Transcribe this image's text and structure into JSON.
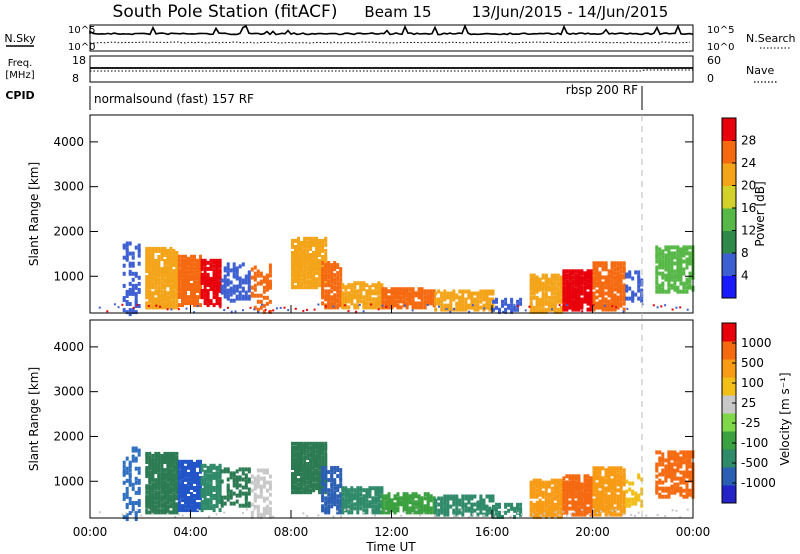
{
  "header": {
    "station": "South Pole Station (fitACF)",
    "beam": "Beam 15",
    "date_range": "13/Jun/2015 - 14/Jun/2015"
  },
  "top_panels": {
    "nsky_label": "N.Sky",
    "nsky_ticks": [
      "10^5",
      "10^0"
    ],
    "nsearch_label": "N.Search",
    "nsearch_ticks": [
      "10^5",
      "10^0"
    ],
    "freq_label": "Freq.",
    "freq_unit": "[MHz]",
    "freq_ticks": [
      "18",
      "8"
    ],
    "nave_label": "Nave",
    "nave_ticks": [
      "60",
      "0"
    ],
    "cpid_label": "CPID",
    "cpid_modes": [
      "normalsound (fast) 157 RF",
      "rbsp 200 RF"
    ]
  },
  "chart_data": [
    {
      "type": "heatmap",
      "name": "power",
      "ylabel": "Slant Range [km]",
      "y_ticks": [
        "1000",
        "2000",
        "3000",
        "4000"
      ],
      "ylim": [
        180,
        4600
      ],
      "x_ticks": [
        "00:00",
        "04:00",
        "08:00",
        "12:00",
        "16:00",
        "20:00",
        "00:00"
      ],
      "xlim_hours": [
        0,
        24
      ],
      "colorbar": {
        "label": "Power [dB]",
        "ticks": [
          "4",
          "8",
          "12",
          "16",
          "20",
          "24",
          "28"
        ],
        "colors": [
          "#1a1aff",
          "#3d5fd1",
          "#2f8a4a",
          "#57b848",
          "#d2d22a",
          "#f4a418",
          "#f56a10",
          "#e8000b"
        ]
      }
    },
    {
      "type": "heatmap",
      "name": "velocity",
      "ylabel": "Slant Range [km]",
      "y_ticks": [
        "1000",
        "2000",
        "3000",
        "4000"
      ],
      "ylim": [
        180,
        4600
      ],
      "x_ticks": [
        "00:00",
        "04:00",
        "08:00",
        "12:00",
        "16:00",
        "20:00",
        "00:00"
      ],
      "xlabel": "Time UT",
      "xlim_hours": [
        0,
        24
      ],
      "colorbar": {
        "label": "Velocity [m s⁻¹]",
        "ticks": [
          "1000",
          "500",
          "100",
          "25",
          "-25",
          "-100",
          "-500",
          "-1000"
        ],
        "colors": [
          "#2323c8",
          "#2b5fb4",
          "#2f8a6a",
          "#3aa040",
          "#7ed84a",
          "#c8c8c8",
          "#f2be18",
          "#f79a14",
          "#f56a10",
          "#e8000b"
        ]
      }
    }
  ],
  "echo_regions": [
    {
      "t0": 1.3,
      "t1": 2.0,
      "r0": 200,
      "r1": 1800,
      "v": "#2f6fc0",
      "p": "#3d5fd1",
      "d": 0.35
    },
    {
      "t0": 2.2,
      "t1": 3.5,
      "r0": 350,
      "r1": 1700,
      "v": "#2b7a52",
      "p": "#f4a418",
      "d": 0.8
    },
    {
      "t0": 3.5,
      "t1": 4.4,
      "r0": 400,
      "r1": 1500,
      "v": "#2255c8",
      "p": "#f56a10",
      "d": 0.75
    },
    {
      "t0": 4.4,
      "t1": 5.2,
      "r0": 400,
      "r1": 1400,
      "v": "#2f8a6a",
      "p": "#e8000b",
      "d": 0.7
    },
    {
      "t0": 5.2,
      "t1": 6.3,
      "r0": 500,
      "r1": 1350,
      "v": "#2b7a52",
      "p": "#3d5fd1",
      "d": 0.45
    },
    {
      "t0": 6.4,
      "t1": 7.2,
      "r0": 250,
      "r1": 1300,
      "v": "#c8c8c8",
      "p": "#f56a10",
      "d": 0.35
    },
    {
      "t0": 8.0,
      "t1": 9.4,
      "r0": 800,
      "r1": 1900,
      "v": "#2b7a52",
      "p": "#f4a418",
      "d": 0.8
    },
    {
      "t0": 9.2,
      "t1": 10.0,
      "r0": 350,
      "r1": 1350,
      "v": "#2b5fb4",
      "p": "#f56a10",
      "d": 0.6
    },
    {
      "t0": 10.0,
      "t1": 11.6,
      "r0": 350,
      "r1": 900,
      "v": "#2f8a6a",
      "p": "#f4a418",
      "d": 0.7
    },
    {
      "t0": 11.6,
      "t1": 13.7,
      "r0": 350,
      "r1": 800,
      "v": "#3aa040",
      "p": "#f56a10",
      "d": 0.7
    },
    {
      "t0": 13.7,
      "t1": 16.0,
      "r0": 300,
      "r1": 750,
      "v": "#2f8a6a",
      "p": "#f4a418",
      "d": 0.6
    },
    {
      "t0": 16.0,
      "t1": 17.2,
      "r0": 250,
      "r1": 550,
      "v": "#2f8a6a",
      "p": "#3d5fd1",
      "d": 0.4
    },
    {
      "t0": 17.5,
      "t1": 18.8,
      "r0": 250,
      "r1": 1100,
      "v": "#f79a14",
      "p": "#f4a418",
      "d": 0.7
    },
    {
      "t0": 18.8,
      "t1": 20.0,
      "r0": 300,
      "r1": 1200,
      "v": "#f56a10",
      "p": "#e8000b",
      "d": 0.8
    },
    {
      "t0": 20.0,
      "t1": 21.3,
      "r0": 300,
      "r1": 1350,
      "v": "#f79a14",
      "p": "#f56a10",
      "d": 0.7
    },
    {
      "t0": 21.3,
      "t1": 22.0,
      "r0": 500,
      "r1": 1200,
      "v": "#f2be18",
      "p": "#3d5fd1",
      "d": 0.3
    },
    {
      "t0": 22.5,
      "t1": 24.0,
      "r0": 700,
      "r1": 1700,
      "v": "#f56a10",
      "p": "#57b848",
      "d": 0.6
    }
  ]
}
